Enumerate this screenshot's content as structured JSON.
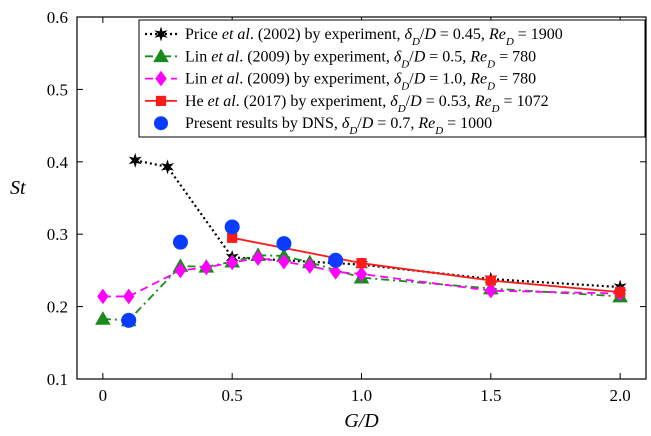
{
  "chart_data": {
    "type": "line",
    "xlabel": "G/D",
    "ylabel": "St",
    "xlim": [
      -0.1,
      2.1
    ],
    "ylim": [
      0.1,
      0.6
    ],
    "x_ticks": [
      0,
      0.5,
      1.0,
      1.5,
      2.0
    ],
    "x_tick_labels": [
      "0",
      "0.5",
      "1.0",
      "1.5",
      "2.0"
    ],
    "y_ticks": [
      0.1,
      0.2,
      0.3,
      0.4,
      0.5,
      0.6
    ],
    "y_tick_labels": [
      "0.1",
      "0.2",
      "0.3",
      "0.4",
      "0.5",
      "0.6"
    ],
    "grid": false,
    "legend_position": "top-right",
    "series": [
      {
        "legend": [
          {
            "t": "Price ",
            "i": false
          },
          {
            "t": "et al",
            "i": true
          },
          {
            "t": ". (2002) by experiment, ",
            "i": false
          },
          {
            "t": "δ",
            "i": true
          },
          {
            "t": "D",
            "i": true,
            "sub": true
          },
          {
            "t": "/",
            "i": false
          },
          {
            "t": "D",
            "i": true
          },
          {
            "t": " = 0.45, ",
            "i": false
          },
          {
            "t": "Re",
            "i": true
          },
          {
            "t": "D",
            "i": true,
            "sub": true
          },
          {
            "t": " = 1900",
            "i": false
          }
        ],
        "color": "#000000",
        "marker": "star",
        "line": "dotted",
        "x": [
          0.125,
          0.25,
          0.5,
          1.0,
          1.5,
          2.0
        ],
        "y": [
          0.402,
          0.393,
          0.268,
          0.258,
          0.238,
          0.227
        ]
      },
      {
        "legend": [
          {
            "t": "Lin ",
            "i": false
          },
          {
            "t": "et al",
            "i": true
          },
          {
            "t": ". (2009) by experiment, ",
            "i": false
          },
          {
            "t": "δ",
            "i": true
          },
          {
            "t": "D",
            "i": true,
            "sub": true
          },
          {
            "t": "/",
            "i": false
          },
          {
            "t": "D",
            "i": true
          },
          {
            "t": " = 0.5, ",
            "i": false
          },
          {
            "t": "Re",
            "i": true
          },
          {
            "t": "D",
            "i": true,
            "sub": true
          },
          {
            "t": " = 780",
            "i": false
          }
        ],
        "color": "#1a8a1a",
        "marker": "triangle",
        "line": "dashdot",
        "x": [
          0,
          0.1,
          0.3,
          0.4,
          0.5,
          0.6,
          0.7,
          0.8,
          1.0,
          1.5,
          2.0
        ],
        "y": [
          0.183,
          0.181,
          0.256,
          0.255,
          0.262,
          0.271,
          0.27,
          0.261,
          0.24,
          0.225,
          0.214
        ]
      },
      {
        "legend": [
          {
            "t": "Lin ",
            "i": false
          },
          {
            "t": "et al",
            "i": true
          },
          {
            "t": ". (2009) by experiment, ",
            "i": false
          },
          {
            "t": "δ",
            "i": true
          },
          {
            "t": "D",
            "i": true,
            "sub": true
          },
          {
            "t": "/",
            "i": false
          },
          {
            "t": "D",
            "i": true
          },
          {
            "t": " = 1.0, ",
            "i": false
          },
          {
            "t": "Re",
            "i": true
          },
          {
            "t": "D",
            "i": true,
            "sub": true
          },
          {
            "t": " = 780",
            "i": false
          }
        ],
        "color": "#ff00ff",
        "marker": "diamond",
        "line": "dashed",
        "x": [
          0,
          0.1,
          0.3,
          0.4,
          0.5,
          0.6,
          0.7,
          0.8,
          0.9,
          1.0,
          1.5,
          2.0
        ],
        "y": [
          0.214,
          0.214,
          0.25,
          0.254,
          0.261,
          0.267,
          0.262,
          0.256,
          0.248,
          0.245,
          0.222,
          0.218
        ]
      },
      {
        "legend": [
          {
            "t": "He ",
            "i": false
          },
          {
            "t": "et al",
            "i": true
          },
          {
            "t": ". (2017) by experiment, ",
            "i": false
          },
          {
            "t": "δ",
            "i": true
          },
          {
            "t": "D",
            "i": true,
            "sub": true
          },
          {
            "t": "/",
            "i": false
          },
          {
            "t": "D",
            "i": true
          },
          {
            "t": " = 0.53, ",
            "i": false
          },
          {
            "t": "Re",
            "i": true
          },
          {
            "t": "D",
            "i": true,
            "sub": true
          },
          {
            "t": " = 1072",
            "i": false
          }
        ],
        "color": "#ff1a1a",
        "marker": "square",
        "line": "solid",
        "x": [
          0.5,
          1.0,
          1.5,
          2.0
        ],
        "y": [
          0.295,
          0.26,
          0.236,
          0.22
        ]
      },
      {
        "legend": [
          {
            "t": "Present results by DNS, ",
            "i": false
          },
          {
            "t": "δ",
            "i": true
          },
          {
            "t": "D",
            "i": true,
            "sub": true
          },
          {
            "t": "/",
            "i": false
          },
          {
            "t": "D",
            "i": true
          },
          {
            "t": " = 0.7, ",
            "i": false
          },
          {
            "t": "Re",
            "i": true
          },
          {
            "t": "D",
            "i": true,
            "sub": true
          },
          {
            "t": " = 1000",
            "i": false
          }
        ],
        "color": "#0a3cff",
        "marker": "circle",
        "line": "none",
        "x": [
          0.1,
          0.3,
          0.5,
          0.7,
          0.9
        ],
        "y": [
          0.181,
          0.289,
          0.31,
          0.287,
          0.264
        ]
      }
    ]
  }
}
